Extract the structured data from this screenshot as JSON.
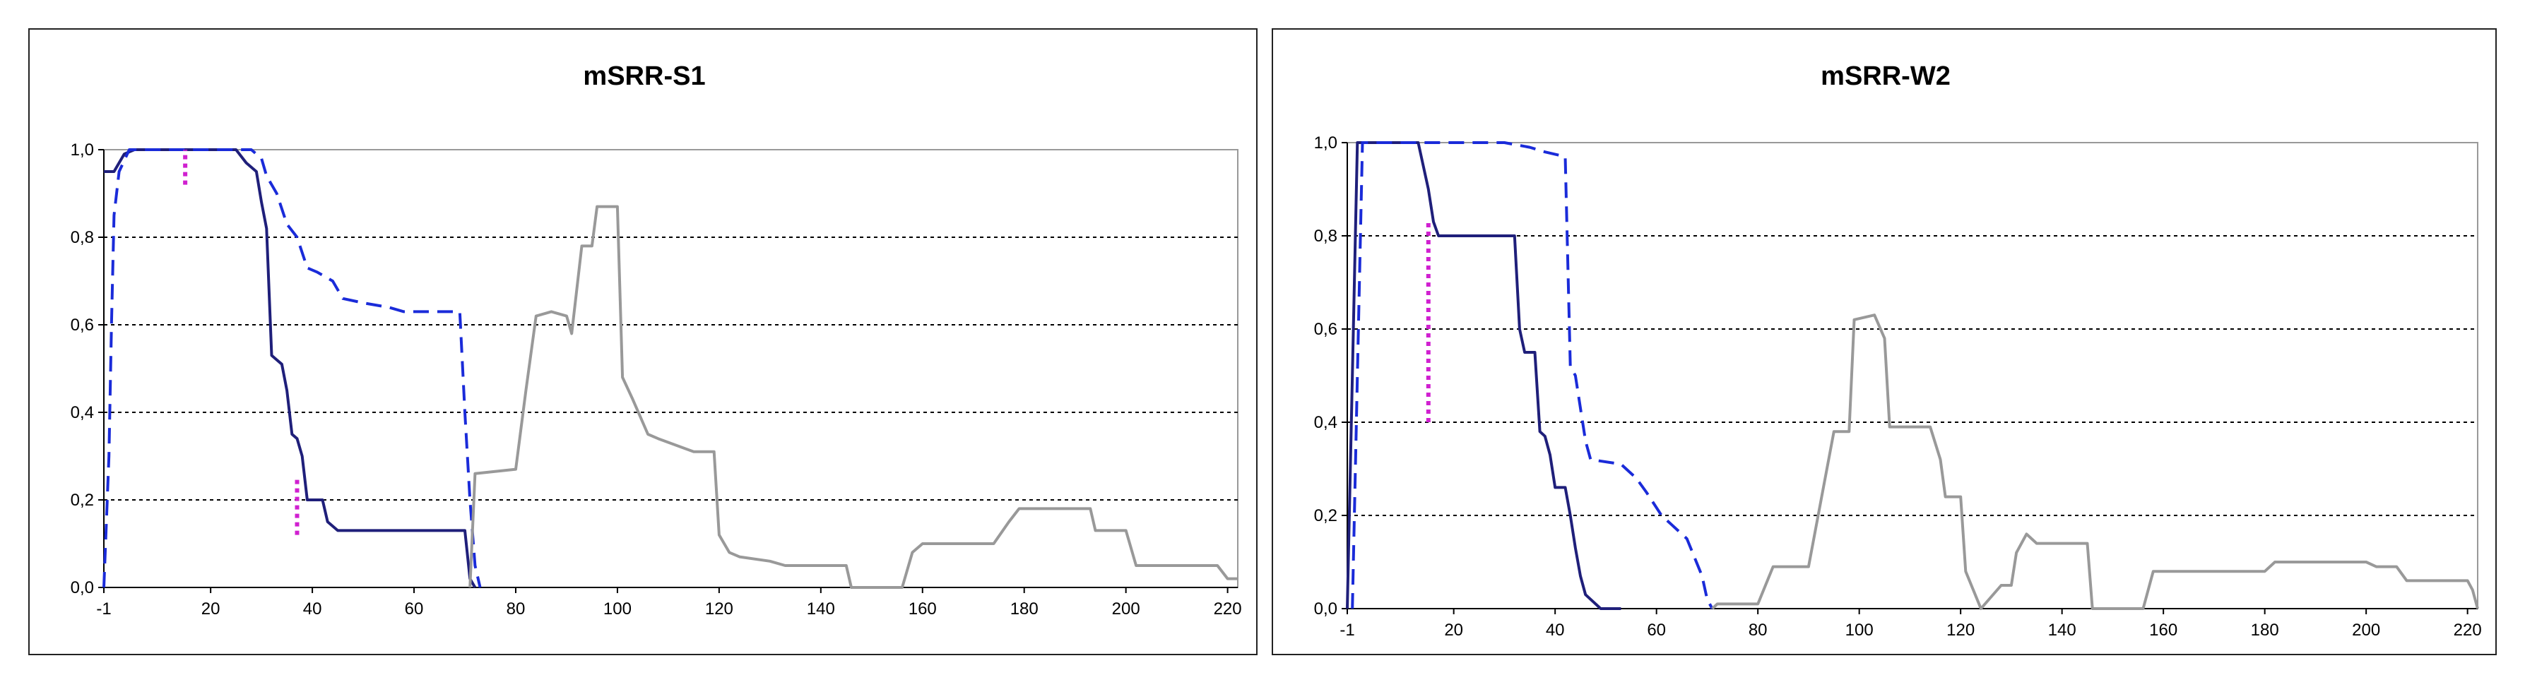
{
  "chart_data": [
    {
      "type": "line",
      "title": "mSRR-S1",
      "xlabel": "",
      "ylabel": "",
      "xlim": [
        -1,
        222
      ],
      "ylim": [
        0,
        1
      ],
      "x_tick_labels": [
        "-1",
        "20",
        "40",
        "60",
        "80",
        "100",
        "120",
        "140",
        "160",
        "180",
        "200",
        "220"
      ],
      "y_tick_labels": [
        "0,0",
        "0,2",
        "0,4",
        "0,6",
        "0,8",
        "1,0"
      ],
      "grid": "horizontal dotted",
      "legend": "none",
      "series": [
        {
          "color": "#1f1f7a",
          "style": "solid",
          "points": [
            [
              -1,
              0.95
            ],
            [
              1,
              0.95
            ],
            [
              3,
              0.99
            ],
            [
              5,
              1.0
            ],
            [
              25,
              1.0
            ],
            [
              27,
              0.97
            ],
            [
              29,
              0.95
            ],
            [
              30,
              0.88
            ],
            [
              31,
              0.82
            ],
            [
              32,
              0.53
            ],
            [
              33,
              0.52
            ],
            [
              34,
              0.51
            ],
            [
              35,
              0.45
            ],
            [
              36,
              0.35
            ],
            [
              37,
              0.34
            ],
            [
              38,
              0.3
            ],
            [
              39,
              0.2
            ],
            [
              42,
              0.2
            ],
            [
              43,
              0.15
            ],
            [
              45,
              0.13
            ],
            [
              70,
              0.13
            ],
            [
              71,
              0.02
            ],
            [
              72,
              0.0
            ]
          ]
        },
        {
          "color": "#1a2bd9",
          "style": "dashed",
          "points": [
            [
              -1,
              0.0
            ],
            [
              0,
              0.3
            ],
            [
              0.5,
              0.6
            ],
            [
              1,
              0.85
            ],
            [
              2,
              0.95
            ],
            [
              4,
              1.0
            ],
            [
              28,
              1.0
            ],
            [
              30,
              0.98
            ],
            [
              31,
              0.94
            ],
            [
              33,
              0.9
            ],
            [
              35,
              0.83
            ],
            [
              37,
              0.8
            ],
            [
              39,
              0.73
            ],
            [
              41,
              0.72
            ],
            [
              44,
              0.7
            ],
            [
              46,
              0.66
            ],
            [
              50,
              0.65
            ],
            [
              55,
              0.64
            ],
            [
              58,
              0.63
            ],
            [
              69,
              0.63
            ],
            [
              70,
              0.4
            ],
            [
              71,
              0.2
            ],
            [
              72,
              0.05
            ],
            [
              73,
              0.0
            ]
          ]
        },
        {
          "color": "#999999",
          "style": "solid",
          "points": [
            [
              71,
              0.0
            ],
            [
              72,
              0.26
            ],
            [
              80,
              0.27
            ],
            [
              82,
              0.45
            ],
            [
              84,
              0.62
            ],
            [
              87,
              0.63
            ],
            [
              90,
              0.62
            ],
            [
              91,
              0.58
            ],
            [
              93,
              0.78
            ],
            [
              95,
              0.78
            ],
            [
              96,
              0.87
            ],
            [
              100,
              0.87
            ],
            [
              101,
              0.48
            ],
            [
              103,
              0.43
            ],
            [
              106,
              0.35
            ],
            [
              108,
              0.34
            ],
            [
              115,
              0.31
            ],
            [
              119,
              0.31
            ],
            [
              120,
              0.12
            ],
            [
              122,
              0.08
            ],
            [
              124,
              0.07
            ],
            [
              130,
              0.06
            ],
            [
              133,
              0.05
            ],
            [
              145,
              0.05
            ],
            [
              146,
              0.0
            ],
            [
              156,
              0.0
            ],
            [
              158,
              0.08
            ],
            [
              160,
              0.1
            ],
            [
              168,
              0.1
            ],
            [
              174,
              0.1
            ],
            [
              177,
              0.15
            ],
            [
              179,
              0.18
            ],
            [
              193,
              0.18
            ],
            [
              194,
              0.13
            ],
            [
              200,
              0.13
            ],
            [
              202,
              0.05
            ],
            [
              218,
              0.05
            ],
            [
              220,
              0.02
            ],
            [
              222,
              0.02
            ]
          ]
        },
        {
          "color": "#d020d0",
          "style": "dotted",
          "segments": [
            [
              [
                15,
                0.92
              ],
              [
                15,
                1.0
              ]
            ],
            [
              [
                37,
                0.12
              ],
              [
                37,
                0.25
              ]
            ]
          ]
        }
      ]
    },
    {
      "type": "line",
      "title": "mSRR-W2",
      "xlabel": "",
      "ylabel": "",
      "xlim": [
        -1,
        222
      ],
      "ylim": [
        0,
        1
      ],
      "x_tick_labels": [
        "-1",
        "20",
        "40",
        "60",
        "80",
        "100",
        "120",
        "140",
        "160",
        "180",
        "200",
        "220"
      ],
      "y_tick_labels": [
        "0,0",
        "0,2",
        "0,4",
        "0,6",
        "0,8",
        "1,0"
      ],
      "grid": "horizontal dotted",
      "legend": "none",
      "series": [
        {
          "color": "#1f1f7a",
          "style": "solid",
          "points": [
            [
              -1,
              0.0
            ],
            [
              0,
              0.5
            ],
            [
              1,
              1.0
            ],
            [
              13,
              1.0
            ],
            [
              14,
              0.95
            ],
            [
              15,
              0.9
            ],
            [
              16,
              0.83
            ],
            [
              17,
              0.8
            ],
            [
              32,
              0.8
            ],
            [
              33,
              0.6
            ],
            [
              34,
              0.55
            ],
            [
              36,
              0.55
            ],
            [
              37,
              0.38
            ],
            [
              38,
              0.37
            ],
            [
              39,
              0.33
            ],
            [
              40,
              0.26
            ],
            [
              42,
              0.26
            ],
            [
              43,
              0.2
            ],
            [
              44,
              0.13
            ],
            [
              45,
              0.07
            ],
            [
              46,
              0.03
            ],
            [
              47,
              0.02
            ],
            [
              49,
              0.0
            ],
            [
              53,
              0.0
            ]
          ]
        },
        {
          "color": "#1a2bd9",
          "style": "dashed",
          "points": [
            [
              0,
              0.0
            ],
            [
              1,
              0.5
            ],
            [
              2,
              1.0
            ],
            [
              15,
              1.0
            ],
            [
              30,
              1.0
            ],
            [
              35,
              0.99
            ],
            [
              38,
              0.98
            ],
            [
              42,
              0.97
            ],
            [
              43,
              0.52
            ],
            [
              44,
              0.5
            ],
            [
              46,
              0.36
            ],
            [
              47,
              0.32
            ],
            [
              53,
              0.31
            ],
            [
              56,
              0.28
            ],
            [
              58,
              0.25
            ],
            [
              61,
              0.2
            ],
            [
              63,
              0.18
            ],
            [
              66,
              0.15
            ],
            [
              69,
              0.07
            ],
            [
              70,
              0.02
            ],
            [
              71,
              0.0
            ]
          ]
        },
        {
          "color": "#999999",
          "style": "solid",
          "points": [
            [
              71,
              0.0
            ],
            [
              72,
              0.01
            ],
            [
              80,
              0.01
            ],
            [
              83,
              0.09
            ],
            [
              90,
              0.09
            ],
            [
              95,
              0.38
            ],
            [
              98,
              0.38
            ],
            [
              99,
              0.62
            ],
            [
              103,
              0.63
            ],
            [
              105,
              0.58
            ],
            [
              106,
              0.39
            ],
            [
              114,
              0.39
            ],
            [
              116,
              0.32
            ],
            [
              117,
              0.24
            ],
            [
              120,
              0.24
            ],
            [
              121,
              0.08
            ],
            [
              124,
              0.0
            ],
            [
              128,
              0.05
            ],
            [
              130,
              0.05
            ],
            [
              131,
              0.12
            ],
            [
              133,
              0.16
            ],
            [
              135,
              0.14
            ],
            [
              145,
              0.14
            ],
            [
              146,
              0.0
            ],
            [
              156,
              0.0
            ],
            [
              158,
              0.08
            ],
            [
              160,
              0.08
            ],
            [
              180,
              0.08
            ],
            [
              182,
              0.1
            ],
            [
              200,
              0.1
            ],
            [
              202,
              0.09
            ],
            [
              206,
              0.09
            ],
            [
              208,
              0.06
            ],
            [
              220,
              0.06
            ],
            [
              221,
              0.04
            ],
            [
              222,
              0.0
            ]
          ]
        },
        {
          "color": "#d020d0",
          "style": "dotted",
          "segments": [
            [
              [
                15,
                0.4
              ],
              [
                15,
                0.83
              ]
            ]
          ]
        }
      ]
    }
  ]
}
